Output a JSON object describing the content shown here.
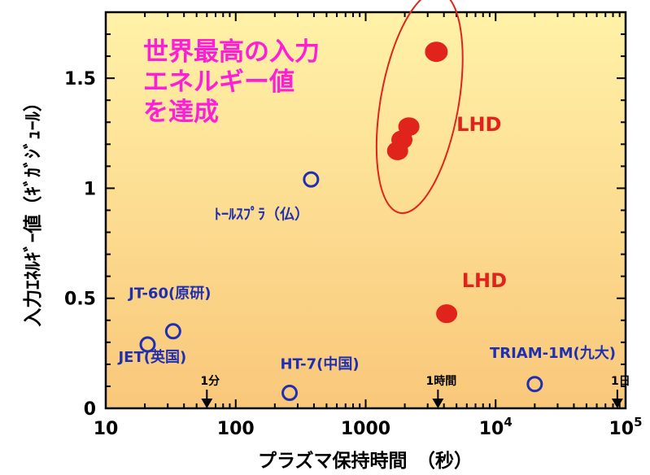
{
  "chart_data": {
    "type": "scatter",
    "x_scale": "log",
    "xlim": [
      10,
      100000
    ],
    "ylim": [
      0,
      1.8
    ],
    "xlabel": "プラズマ保持時間　（秒）",
    "ylabel": "入力ｴﾈﾙｷﾞｰ値（ｷﾞｶﾞｼﾞｭｰﾙ）",
    "x_ticks": [
      {
        "value": 10,
        "label": "10"
      },
      {
        "value": 100,
        "label": "100"
      },
      {
        "value": 1000,
        "label": "1000"
      },
      {
        "value": 10000,
        "label": "10",
        "exp": "4"
      },
      {
        "value": 100000,
        "label": "10",
        "exp": "5"
      }
    ],
    "y_ticks": [
      {
        "value": 0,
        "label": "0"
      },
      {
        "value": 0.5,
        "label": "0.5"
      },
      {
        "value": 1,
        "label": "1"
      },
      {
        "value": 1.5,
        "label": "1.5"
      }
    ],
    "background_gradient": [
      "#fff2a8",
      "#f9c77a"
    ],
    "headline_lines": [
      "世界最高の入力",
      "エネルギー値",
      "を達成"
    ],
    "headline_color": "#ff1ed7",
    "series": [
      {
        "style": "open-circle",
        "color": "#1f2fb0",
        "points": [
          {
            "x": 21,
            "y": 0.29
          },
          {
            "x": 33,
            "y": 0.35
          },
          {
            "x": 260,
            "y": 0.07
          },
          {
            "x": 380,
            "y": 1.04
          },
          {
            "x": 20000,
            "y": 0.11
          }
        ]
      },
      {
        "style": "filled-circle",
        "color": "#e0241c",
        "points": [
          {
            "x": 1760,
            "y": 1.17
          },
          {
            "x": 1900,
            "y": 1.22
          },
          {
            "x": 2150,
            "y": 1.28
          },
          {
            "x": 3500,
            "y": 1.62
          },
          {
            "x": 4200,
            "y": 0.43
          }
        ]
      }
    ],
    "point_labels": [
      {
        "text": "JT-60(原研)",
        "x": 15,
        "y": 0.5
      },
      {
        "text": "JET(英国)",
        "x": 12.5,
        "y": 0.21
      },
      {
        "text": "HT-7(中国)",
        "x": 220,
        "y": 0.18
      },
      {
        "text": "ﾄｰﾙｽﾌﾟﾗ（仏）",
        "x": 68,
        "y": 0.86
      },
      {
        "text": "TRIAM-1M(九大)",
        "x": 9000,
        "y": 0.23
      }
    ],
    "lhd_labels": [
      {
        "text": "LHD",
        "x": 5000,
        "y": 1.26
      },
      {
        "text": "LHD",
        "x": 5500,
        "y": 0.55
      }
    ],
    "time_markers": [
      {
        "label": "1分",
        "value": 60
      },
      {
        "label": "1時間",
        "value": 3600
      },
      {
        "label": "1日",
        "value": 86400
      }
    ],
    "highlight_ellipse": {
      "center_x": 2600,
      "center_y": 1.39,
      "rx_decades": 0.3,
      "ry_units": 0.51
    },
    "highlight_color": "#e0241c"
  }
}
